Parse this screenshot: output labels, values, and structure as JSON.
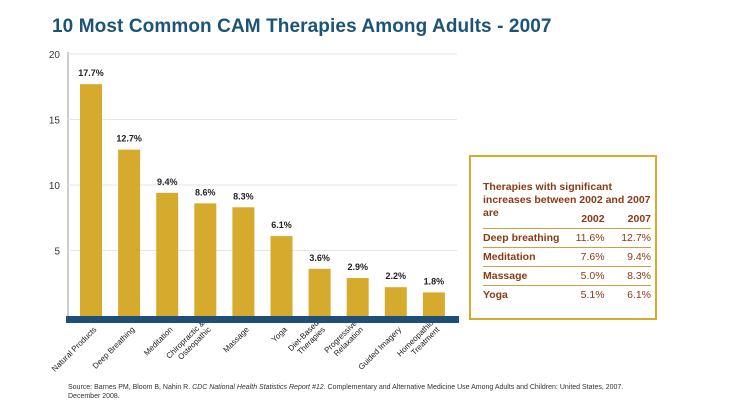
{
  "title": "10 Most Common CAM Therapies Among Adults - 2007",
  "colors": {
    "bar": "#d6ab2d",
    "axis_bar": "#1f4e79",
    "title": "#1b5478",
    "panel_text": "#8a3a14",
    "grid": "#e6e6e6"
  },
  "chart_data": {
    "type": "bar",
    "title": "10 Most Common CAM Therapies Among Adults - 2007",
    "xlabel": "",
    "ylabel": "",
    "ylim": [
      0,
      20
    ],
    "yticks": [
      "5",
      "10",
      "15",
      "20"
    ],
    "grid": true,
    "categories": [
      [
        "Natural Products"
      ],
      [
        "Deep Breathing"
      ],
      [
        "Meditation"
      ],
      [
        "Chiropractic &",
        "Osteopathic"
      ],
      [
        "Massage"
      ],
      [
        "Yoga"
      ],
      [
        "Diet-Based",
        "Therapies"
      ],
      [
        "Progressive",
        "Relaxation"
      ],
      [
        "Guided Imagery"
      ],
      [
        "Homeopathic",
        "Treatment"
      ]
    ],
    "values": [
      17.7,
      12.7,
      9.4,
      8.6,
      8.3,
      6.1,
      3.6,
      2.9,
      2.2,
      1.8
    ],
    "data_labels": [
      "17.7%",
      "12.7%",
      "9.4%",
      "8.6%",
      "8.3%",
      "6.1%",
      "3.6%",
      "2.9%",
      "2.2%",
      "1.8%"
    ]
  },
  "panel": {
    "title": "Therapies with significant increases between 2002 and 2007 are",
    "col_2002": "2002",
    "col_2007": "2007",
    "rows": [
      {
        "name": "Deep breathing",
        "v2002": "11.6%",
        "v2007": "12.7%"
      },
      {
        "name": "Meditation",
        "v2002": "7.6%",
        "v2007": "9.4%"
      },
      {
        "name": "Massage",
        "v2002": "5.0%",
        "v2007": "8.3%"
      },
      {
        "name": "Yoga",
        "v2002": "5.1%",
        "v2007": "6.1%"
      }
    ]
  },
  "source": {
    "prefix": "Source: Barnes PM, Bloom B, Nahin R.",
    "report": "CDC National Health Statistics Report #12.",
    "suffix": "Complementary and Alternative Medicine Use Among Adults and Children: United States, 2007. December 2008."
  }
}
